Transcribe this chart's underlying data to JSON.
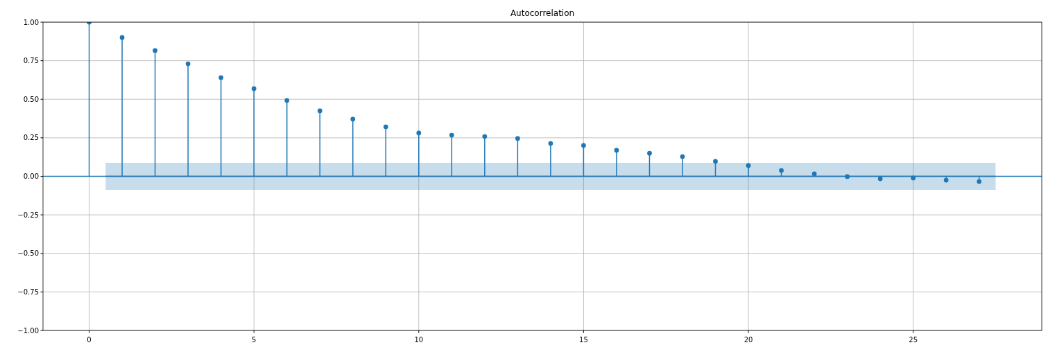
{
  "chart_data": {
    "type": "lollipop",
    "title": "Autocorrelation",
    "xlim": [
      -1.4,
      28.9
    ],
    "xticks": [
      0,
      5,
      10,
      15,
      20,
      25
    ],
    "ylim": [
      -1,
      1
    ],
    "yticks": [
      {
        "value": -1,
        "label": "−1.00"
      },
      {
        "value": -0.75,
        "label": "−0.75"
      },
      {
        "value": -0.5,
        "label": "−0.50"
      },
      {
        "value": -0.25,
        "label": "−0.25"
      },
      {
        "value": 0,
        "label": "0.00"
      },
      {
        "value": 0.25,
        "label": "0.25"
      },
      {
        "value": 0.5,
        "label": "0.50"
      },
      {
        "value": 0.75,
        "label": "0.75"
      },
      {
        "value": 1,
        "label": "1.00"
      }
    ],
    "grid": true,
    "ref_lines": [
      {
        "axis": "y",
        "value": 0,
        "color": "#1f77b4"
      }
    ],
    "series": [
      {
        "type": "line",
        "marker": "none",
        "color": "#1f77b4",
        "x": [
          0.5,
          27.5
        ],
        "values": [
          0,
          0
        ],
        "lower": [
          -0.088,
          -0.088
        ],
        "upper": [
          0.088,
          0.088
        ]
      },
      {
        "marker": "circle",
        "color": "#1f77b4",
        "x": [
          0,
          1,
          2,
          3,
          4,
          5,
          6,
          7,
          8,
          9,
          10,
          11,
          12,
          13,
          14,
          15,
          16,
          17,
          18,
          19,
          20,
          21,
          22,
          23,
          24,
          25,
          26,
          27
        ],
        "values": [
          1.0,
          0.9,
          0.816,
          0.73,
          0.64,
          0.569,
          0.492,
          0.425,
          0.371,
          0.321,
          0.281,
          0.267,
          0.258,
          0.245,
          0.213,
          0.2,
          0.169,
          0.15,
          0.128,
          0.097,
          0.07,
          0.038,
          0.016,
          -0.002,
          -0.016,
          -0.011,
          -0.025,
          -0.034
        ]
      }
    ]
  }
}
